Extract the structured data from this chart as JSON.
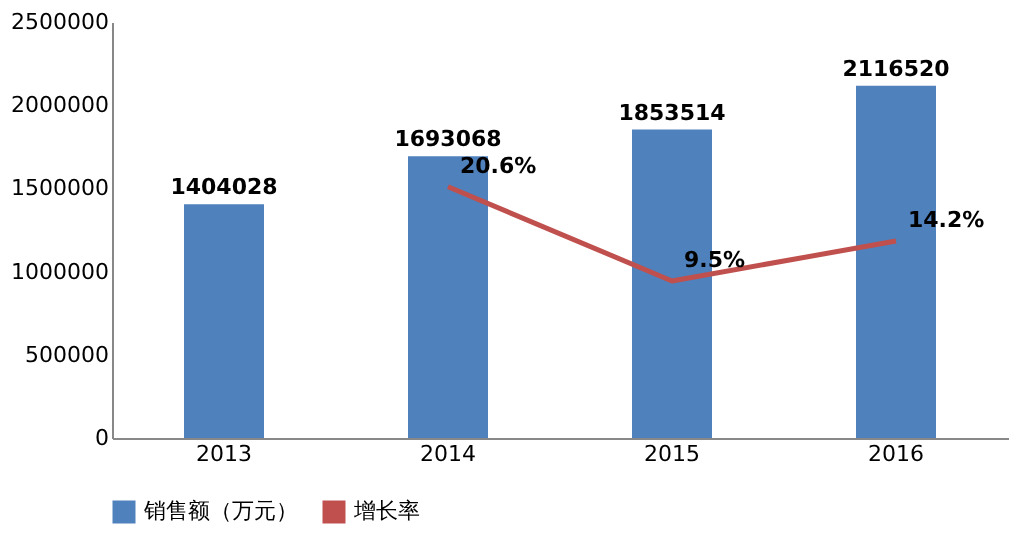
{
  "chart_data": {
    "type": "bar",
    "categories": [
      "2013",
      "2014",
      "2015",
      "2016"
    ],
    "series": [
      {
        "name": "销售额（万元）",
        "color": "#4f81bd",
        "values": [
          1404028,
          1693068,
          1853514,
          2116520
        ],
        "value_labels": [
          "1404028",
          "1693068",
          "1853514",
          "2116520"
        ]
      },
      {
        "name": "增长率",
        "type": "line",
        "axis": "y2",
        "color": "#c0504d",
        "values": [
          null,
          20.6,
          9.5,
          14.2
        ],
        "value_labels": [
          null,
          "20.6%",
          "9.5%",
          "14.2%"
        ]
      }
    ],
    "ylim": [
      0,
      2500000
    ],
    "yticks": [
      0,
      500000,
      1000000,
      1500000,
      2000000,
      2500000
    ],
    "y2lim": [
      -9,
      40
    ],
    "tick_labels": "xy",
    "grid": false,
    "legend": "bottom",
    "marker": "none",
    "line_style": "solid"
  }
}
